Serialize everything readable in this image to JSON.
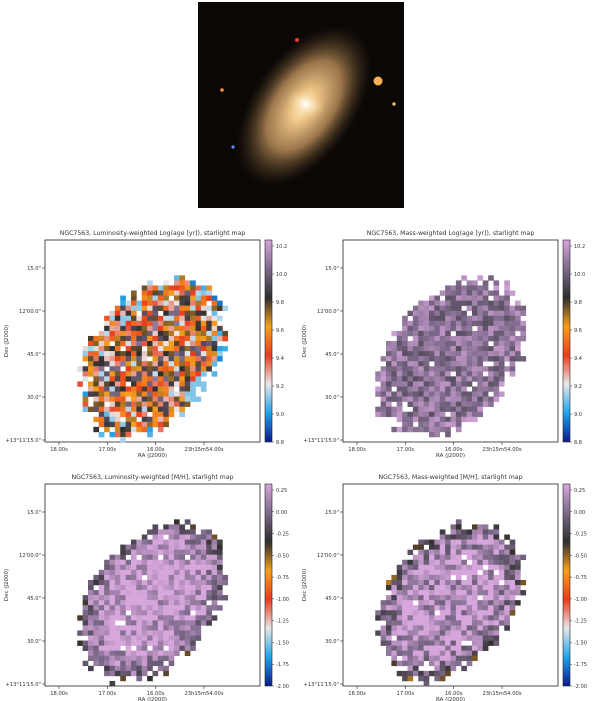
{
  "photo": {
    "background": "#0a0705",
    "galaxy_color": "#c9a066",
    "core_color": "#fff0cc"
  },
  "chart_data": [
    {
      "type": "heatmap",
      "title": "NGC7563, Luminosity-weighted Log(age [yr]), starlight map",
      "xlabel": "RA (J2000)",
      "ylabel": "Dec (J2000)",
      "x_ticklabels": [
        "18.00s",
        "17.00s",
        "16.00s",
        "23h15m54.00s"
      ],
      "y_ticklabels": [
        "+13°11'15.0\"",
        "30.0\"",
        "45.0\"",
        "12'00.0\"",
        "15.0\""
      ],
      "colorbar_ticklabels": [
        "10.2",
        "10.0",
        "9.8",
        "9.6",
        "9.4",
        "9.2",
        "9.0",
        "8.8"
      ],
      "colorbar_range": [
        8.8,
        10.2
      ],
      "values": {
        "mean": 9.6,
        "spread": 0.45,
        "edge_bias": -0.25,
        "outer_right_patch": 9.1
      }
    },
    {
      "type": "heatmap",
      "title": "NGC7563, Mass-weighted Log(age [yr]), starlight map",
      "xlabel": "RA (J2000)",
      "ylabel": "Dec (J2000)",
      "x_ticklabels": [
        "18.00s",
        "17.00s",
        "16.00s",
        "23h15m54.00s"
      ],
      "y_ticklabels": [
        "+13°11'15.0\"",
        "30.0\"",
        "45.0\"",
        "12'00.0\"",
        "15.0\""
      ],
      "colorbar_ticklabels": [
        "10.2",
        "10.0",
        "9.8",
        "9.6",
        "9.4",
        "9.2",
        "9.0",
        "8.8"
      ],
      "colorbar_range": [
        8.8,
        10.2
      ],
      "values": {
        "mean": 10.02,
        "spread": 0.12,
        "edge_bias": 0.05,
        "outer_right_patch": null
      }
    },
    {
      "type": "heatmap",
      "title": "NGC7563, Luminosity-weighted [M/H], starlight map",
      "xlabel": "RA (J2000)",
      "ylabel": "Dec (J2000)",
      "x_ticklabels": [
        "18.00s",
        "17.00s",
        "16.00s",
        "23h15m54.00s"
      ],
      "y_ticklabels": [
        "+13°11'15.0\"",
        "30.0\"",
        "45.0\"",
        "12'00.0\"",
        "15.0\""
      ],
      "colorbar_ticklabels": [
        "0.25",
        "0.00",
        "-0.25",
        "-0.50",
        "-0.75",
        "-1.00",
        "-1.25",
        "-1.50",
        "-1.75",
        "-2.00"
      ],
      "colorbar_range": [
        -2.0,
        0.25
      ],
      "values": {
        "mean": 0.2,
        "spread": 0.25,
        "edge_bias": -0.45,
        "outer_right_patch": null
      }
    },
    {
      "type": "heatmap",
      "title": "NGC7563, Mass-weighted [M/H], starlight map",
      "xlabel": "RA (J2000)",
      "ylabel": "Dec (J2000)",
      "x_ticklabels": [
        "18.00s",
        "17.00s",
        "16.00s",
        "23h15m54.00s"
      ],
      "y_ticklabels": [
        "+13°11'15.0\"",
        "30.0\"",
        "45.0\"",
        "12'00.0\"",
        "15.0\""
      ],
      "colorbar_ticklabels": [
        "0.25",
        "0.00",
        "-0.25",
        "-0.50",
        "-0.75",
        "-1.00",
        "-1.25",
        "-1.50",
        "-1.75",
        "-2.00"
      ],
      "colorbar_range": [
        -2.0,
        0.25
      ],
      "values": {
        "mean": 0.18,
        "spread": 0.3,
        "edge_bias": -0.5,
        "outer_right_patch": null
      }
    }
  ],
  "colormap": [
    "#0b1a8c",
    "#1fa2e8",
    "#e8e8e8",
    "#e83c1e",
    "#f5a01e",
    "#2e2e2e",
    "#7d6a8a",
    "#d7a6dc"
  ]
}
